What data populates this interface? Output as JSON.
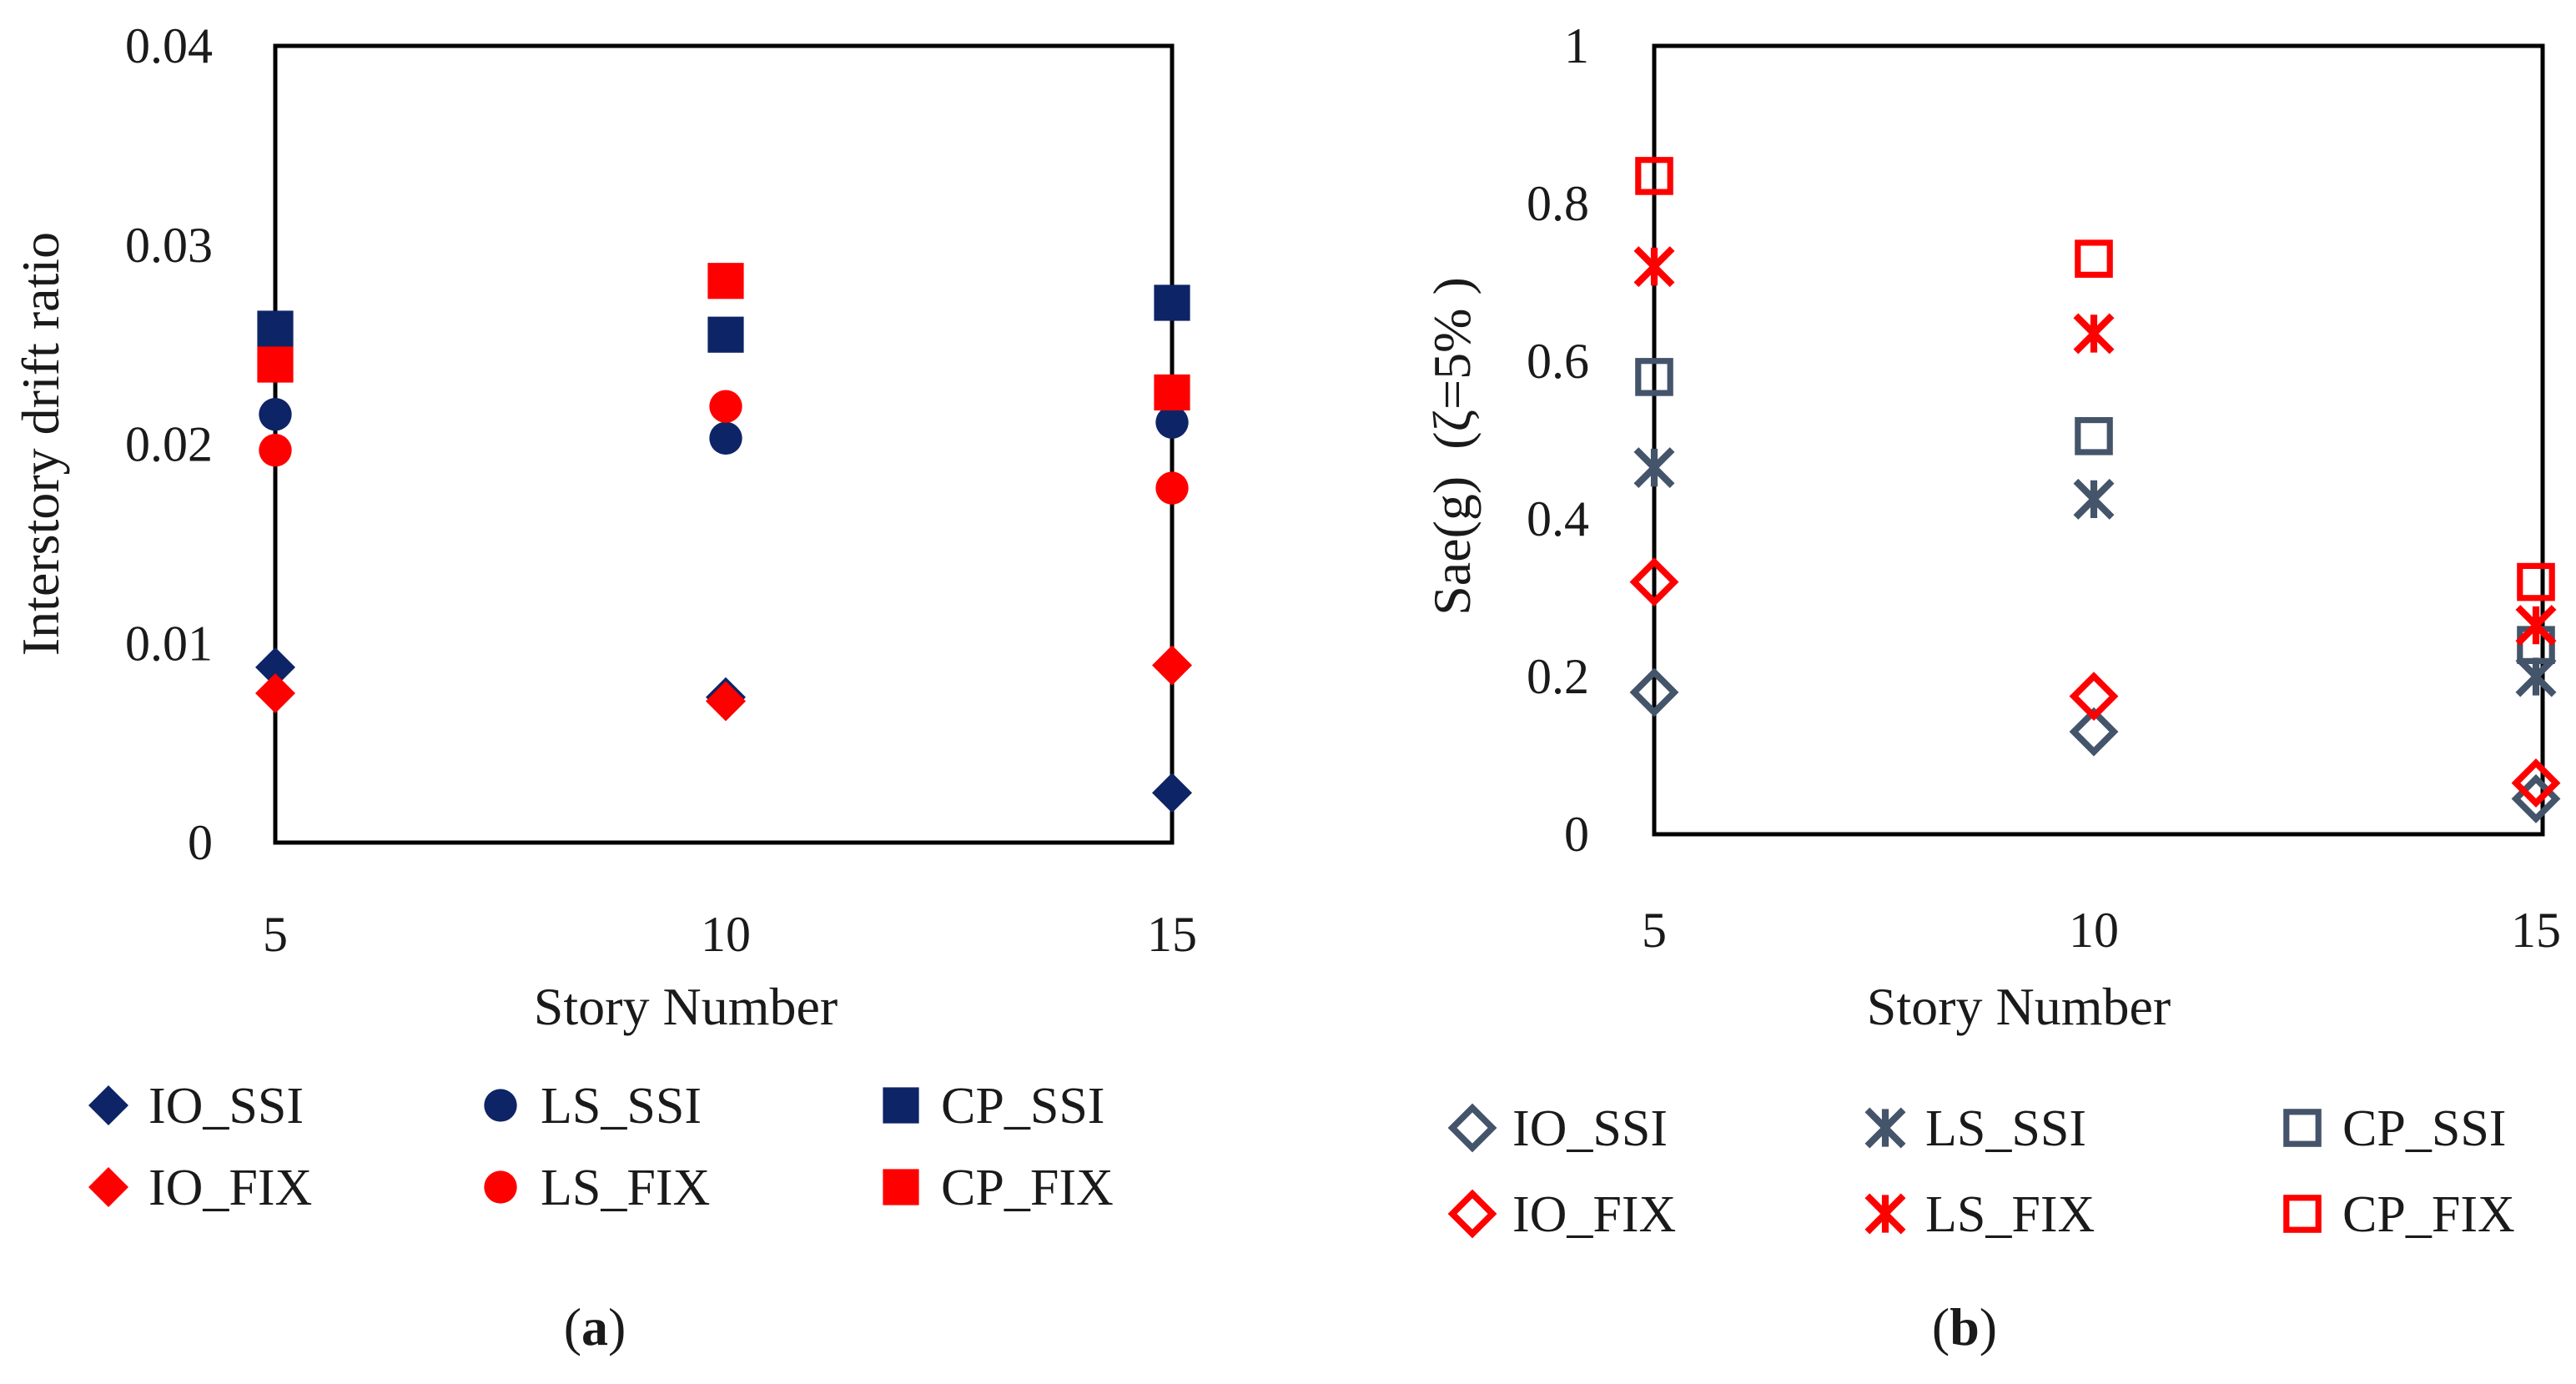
{
  "chart_data": [
    {
      "id": "a",
      "type": "scatter",
      "caption": "a",
      "xlabel": "Story Number",
      "ylabel": "Interstory drift ratio",
      "x_categories": [
        5,
        10,
        15
      ],
      "ylim": [
        0,
        0.04
      ],
      "y_ticks": [
        "0",
        "0.01",
        "0.02",
        "0.03",
        "0.04"
      ],
      "y_tick_values": [
        0,
        0.01,
        0.02,
        0.03,
        0.04
      ],
      "series": [
        {
          "name": "IO_SSI",
          "marker": "diamond-filled",
          "color": "#0d2466",
          "values": [
            0.0088,
            0.0073,
            0.0025
          ]
        },
        {
          "name": "LS_SSI",
          "marker": "circle-filled",
          "color": "#0d2466",
          "values": [
            0.0215,
            0.0203,
            0.0211
          ]
        },
        {
          "name": "CP_SSI",
          "marker": "square-filled",
          "color": "#0d2466",
          "values": [
            0.0258,
            0.0255,
            0.0271
          ]
        },
        {
          "name": "IO_FIX",
          "marker": "diamond-filled",
          "color": "#ff0000",
          "values": [
            0.0075,
            0.0071,
            0.0089
          ]
        },
        {
          "name": "LS_FIX",
          "marker": "circle-filled",
          "color": "#ff0000",
          "values": [
            0.0197,
            0.0219,
            0.0178
          ]
        },
        {
          "name": "CP_FIX",
          "marker": "square-filled",
          "color": "#ff0000",
          "values": [
            0.024,
            0.0282,
            0.0226
          ]
        }
      ]
    },
    {
      "id": "b",
      "type": "scatter",
      "caption": "b",
      "xlabel": "Story Number",
      "ylabel": "Sae(g)  (ζ=5% )",
      "x_categories": [
        5,
        10,
        15
      ],
      "ylim": [
        0,
        1
      ],
      "y_ticks": [
        "0",
        "0.2",
        "0.4",
        "0.6",
        "0.8",
        "1"
      ],
      "y_tick_values": [
        0,
        0.2,
        0.4,
        0.6,
        0.8,
        1
      ],
      "series": [
        {
          "name": "IO_SSI",
          "marker": "diamond-open",
          "color": "#44546a",
          "values": [
            0.18,
            0.13,
            0.045
          ]
        },
        {
          "name": "LS_SSI",
          "marker": "star",
          "color": "#44546a",
          "values": [
            0.465,
            0.425,
            0.2
          ]
        },
        {
          "name": "CP_SSI",
          "marker": "square-open",
          "color": "#44546a",
          "values": [
            0.58,
            0.505,
            0.24
          ]
        },
        {
          "name": "IO_FIX",
          "marker": "diamond-open",
          "color": "#ff0000",
          "values": [
            0.32,
            0.175,
            0.065
          ]
        },
        {
          "name": "LS_FIX",
          "marker": "star",
          "color": "#ff0000",
          "values": [
            0.72,
            0.635,
            0.265
          ]
        },
        {
          "name": "CP_FIX",
          "marker": "square-open",
          "color": "#ff0000",
          "values": [
            0.835,
            0.73,
            0.32
          ]
        }
      ]
    }
  ]
}
